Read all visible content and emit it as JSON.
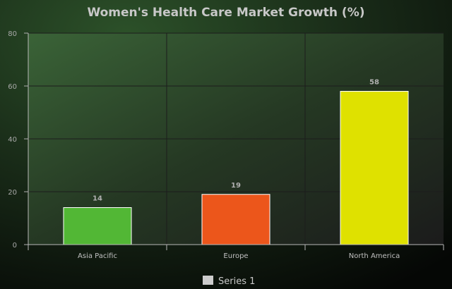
{
  "chart_data": {
    "type": "bar",
    "title": "Women's Health Care Market Growth (%)",
    "categories": [
      "Asia Pacific",
      "Europe",
      "North America"
    ],
    "series": [
      {
        "name": "Series 1",
        "values": [
          14,
          19,
          58
        ],
        "colors": [
          "#52b735",
          "#ec561b",
          "#dfe100"
        ]
      }
    ],
    "yticks": [
      "0",
      "20",
      "40",
      "60",
      "80"
    ],
    "ylim": [
      0,
      80
    ],
    "grid": true,
    "legend_position": "bottom-center",
    "legend_swatch_color": "#cccccc"
  }
}
